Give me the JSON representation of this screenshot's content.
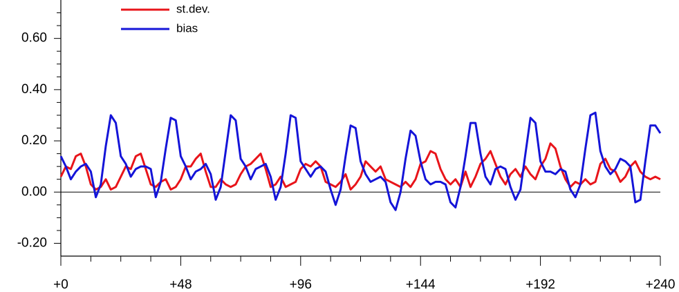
{
  "chart_data": {
    "type": "line",
    "x": [
      0,
      2,
      4,
      6,
      8,
      10,
      12,
      14,
      16,
      18,
      20,
      22,
      24,
      26,
      28,
      30,
      32,
      34,
      36,
      38,
      40,
      42,
      44,
      46,
      48,
      50,
      52,
      54,
      56,
      58,
      60,
      62,
      64,
      66,
      68,
      70,
      72,
      74,
      76,
      78,
      80,
      82,
      84,
      86,
      88,
      90,
      92,
      94,
      96,
      98,
      100,
      102,
      104,
      106,
      108,
      110,
      112,
      114,
      116,
      118,
      120,
      122,
      124,
      126,
      128,
      130,
      132,
      134,
      136,
      138,
      140,
      142,
      144,
      146,
      148,
      150,
      152,
      154,
      156,
      158,
      160,
      162,
      164,
      166,
      168,
      170,
      172,
      174,
      176,
      178,
      180,
      182,
      184,
      186,
      188,
      190,
      192,
      194,
      196,
      198,
      200,
      202,
      204,
      206,
      208,
      210,
      212,
      214,
      216,
      218,
      220,
      222,
      224,
      226,
      228,
      230,
      232,
      234,
      236,
      238,
      240
    ],
    "series": [
      {
        "name": "st.dev.",
        "color": "#e8141a",
        "values": [
          0.06,
          0.1,
          0.09,
          0.14,
          0.15,
          0.1,
          0.03,
          0.01,
          0.02,
          0.05,
          0.01,
          0.02,
          0.06,
          0.1,
          0.09,
          0.14,
          0.15,
          0.09,
          0.03,
          0.02,
          0.04,
          0.05,
          0.01,
          0.02,
          0.05,
          0.1,
          0.1,
          0.13,
          0.15,
          0.08,
          0.02,
          0.02,
          0.05,
          0.03,
          0.02,
          0.03,
          0.07,
          0.1,
          0.11,
          0.13,
          0.15,
          0.09,
          0.02,
          0.03,
          0.06,
          0.02,
          0.03,
          0.04,
          0.09,
          0.11,
          0.1,
          0.12,
          0.1,
          0.04,
          0.03,
          0.02,
          0.04,
          0.07,
          0.01,
          0.03,
          0.06,
          0.12,
          0.1,
          0.08,
          0.1,
          0.05,
          0.04,
          0.03,
          0.02,
          0.04,
          0.02,
          0.05,
          0.11,
          0.12,
          0.16,
          0.15,
          0.09,
          0.05,
          0.03,
          0.05,
          0.02,
          0.08,
          0.02,
          0.06,
          0.11,
          0.13,
          0.16,
          0.11,
          0.06,
          0.03,
          0.07,
          0.09,
          0.06,
          0.1,
          0.07,
          0.05,
          0.1,
          0.13,
          0.19,
          0.17,
          0.1,
          0.05,
          0.02,
          0.04,
          0.03,
          0.05,
          0.03,
          0.04,
          0.11,
          0.13,
          0.09,
          0.08,
          0.04,
          0.06,
          0.1,
          0.12,
          0.08,
          0.06,
          0.05,
          0.06,
          0.05
        ]
      },
      {
        "name": "bias",
        "color": "#1414d8",
        "values": [
          0.14,
          0.1,
          0.05,
          0.08,
          0.1,
          0.11,
          0.08,
          -0.02,
          0.03,
          0.18,
          0.3,
          0.27,
          0.14,
          0.11,
          0.06,
          0.09,
          0.1,
          0.1,
          0.09,
          -0.02,
          0.04,
          0.17,
          0.29,
          0.28,
          0.14,
          0.1,
          0.05,
          0.08,
          0.09,
          0.11,
          0.07,
          -0.03,
          0.02,
          0.16,
          0.3,
          0.28,
          0.13,
          0.1,
          0.05,
          0.09,
          0.1,
          0.11,
          0.06,
          -0.03,
          0.02,
          0.15,
          0.3,
          0.29,
          0.12,
          0.09,
          0.06,
          0.09,
          0.1,
          0.08,
          0.01,
          -0.05,
          0.01,
          0.14,
          0.26,
          0.25,
          0.12,
          0.07,
          0.04,
          0.05,
          0.06,
          0.04,
          -0.04,
          -0.07,
          0.0,
          0.13,
          0.24,
          0.22,
          0.12,
          0.05,
          0.03,
          0.04,
          0.04,
          0.03,
          -0.04,
          -0.06,
          0.02,
          0.14,
          0.27,
          0.27,
          0.15,
          0.06,
          0.03,
          0.09,
          0.1,
          0.09,
          0.02,
          -0.03,
          0.01,
          0.15,
          0.29,
          0.27,
          0.12,
          0.08,
          0.08,
          0.07,
          0.09,
          0.08,
          0.01,
          -0.02,
          0.03,
          0.17,
          0.3,
          0.31,
          0.16,
          0.1,
          0.07,
          0.09,
          0.13,
          0.12,
          0.1,
          -0.04,
          -0.03,
          0.12,
          0.26,
          0.26,
          0.23
        ]
      }
    ],
    "xlim": [
      0,
      240
    ],
    "xticks": [
      {
        "value": 0,
        "label": "+0"
      },
      {
        "value": 48,
        "label": "+48"
      },
      {
        "value": 96,
        "label": "+96"
      },
      {
        "value": 144,
        "label": "+144"
      },
      {
        "value": 192,
        "label": "+192"
      },
      {
        "value": 240,
        "label": "+240"
      }
    ],
    "xticks_minor": [
      12,
      24,
      36,
      60,
      72,
      84,
      108,
      120,
      132,
      156,
      168,
      180,
      204,
      216,
      228
    ],
    "ylim": [
      -0.25,
      0.75
    ],
    "yticks": [
      {
        "value": -0.2,
        "label": "-0.20"
      },
      {
        "value": 0,
        "label": "0.00"
      },
      {
        "value": 0.2,
        "label": "0.20"
      },
      {
        "value": 0.4,
        "label": "0.40"
      },
      {
        "value": 0.6,
        "label": "0.60"
      }
    ],
    "yticks_minor": [
      -0.15,
      -0.1,
      -0.05,
      0.05,
      0.1,
      0.15,
      0.25,
      0.3,
      0.35,
      0.45,
      0.5,
      0.55,
      0.65,
      0.7
    ],
    "zero_line": 0
  }
}
